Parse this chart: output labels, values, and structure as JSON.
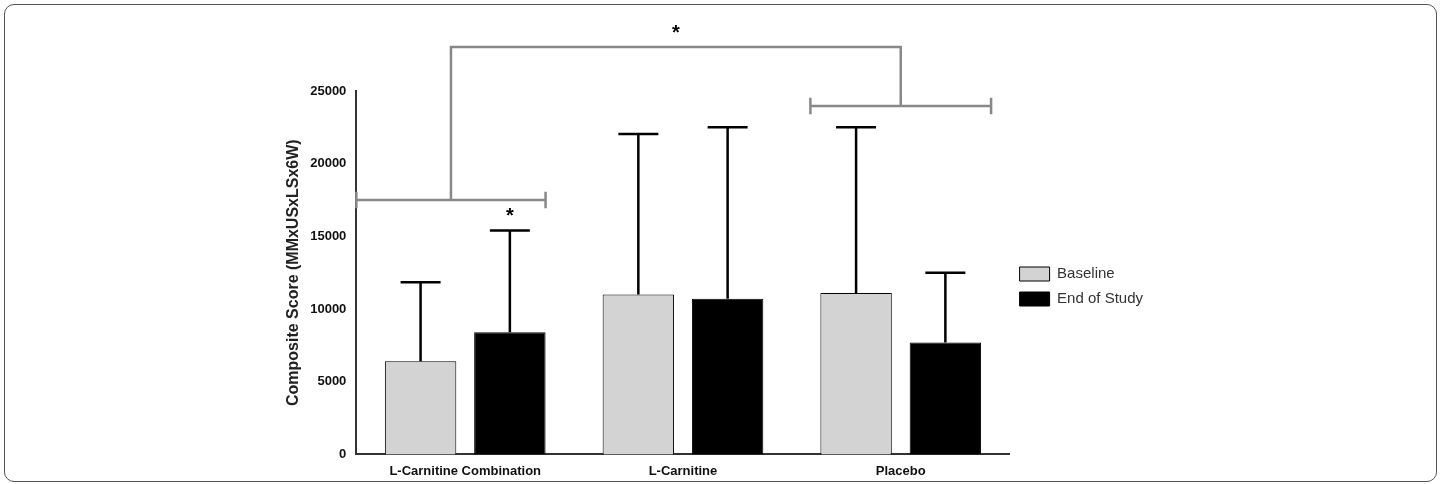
{
  "chart_data": {
    "type": "bar",
    "ylabel": "Composite Score (MMxUSxLSx6W)",
    "categories": [
      "L-Carnitine Combination",
      "L-Carnitine",
      "Placebo"
    ],
    "series": [
      {
        "name": "Baseline",
        "color": "#d3d3d3",
        "values": [
          6400,
          11000,
          11100
        ],
        "errors": [
          [
            6400,
            11850
          ],
          [
            11000,
            22050
          ],
          [
            11100,
            22500
          ]
        ]
      },
      {
        "name": "End of Study",
        "color": "#000000",
        "values": [
          8400,
          10700,
          7700
        ],
        "errors": [
          [
            8400,
            15400
          ],
          [
            10700,
            22500
          ],
          [
            7700,
            12500
          ]
        ]
      }
    ],
    "ylim": [
      0,
      25000
    ],
    "yticks": [
      0,
      5000,
      10000,
      15000,
      20000,
      25000
    ],
    "grid": false,
    "legend": "right",
    "annotations": [
      "*",
      "*"
    ]
  }
}
